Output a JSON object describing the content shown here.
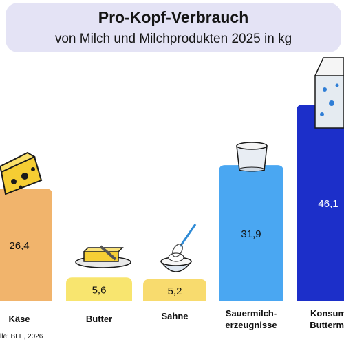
{
  "chart_data": {
    "type": "bar",
    "title": "Pro-Kopf-Verbrauch",
    "subtitle": "von Milch und Milchprodukten 2025 in kg",
    "categories": [
      "Käse",
      "Butter",
      "Sahne",
      "Sauermilch-\nerzeugnisse",
      "Konsum\nButtermi"
    ],
    "values": [
      26.4,
      5.6,
      5.2,
      31.9,
      46.1
    ],
    "value_labels": [
      "26,4",
      "5,6",
      "5,2",
      "31,9",
      "46,1"
    ],
    "colors": [
      "#f1b46c",
      "#f8e56f",
      "#f8db6e",
      "#4aa7f2",
      "#1c2fc9"
    ],
    "label_colors": [
      "#111111",
      "#111111",
      "#111111",
      "#111111",
      "#ffffff"
    ],
    "ylim": [
      0,
      46.1
    ],
    "source": "lle: BLE, 2026"
  }
}
